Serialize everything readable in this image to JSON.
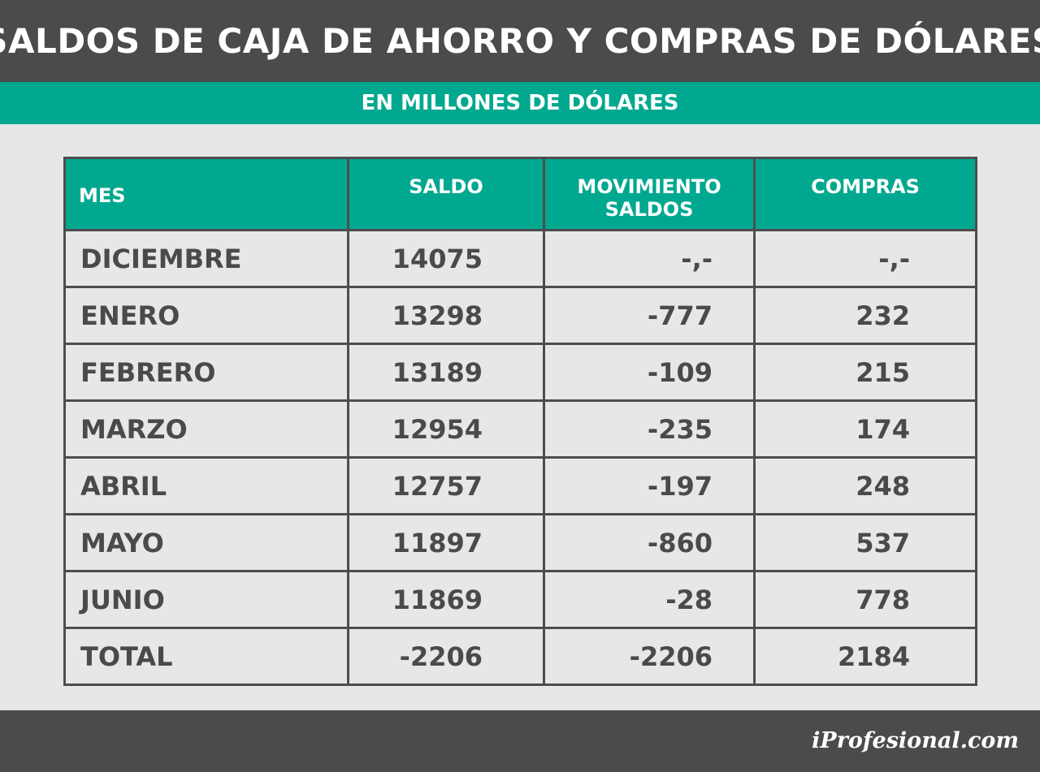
{
  "title": "SALDOS DE CAJA DE AHORRO Y COMPRAS DE DÓLARES",
  "subtitle": "EN MILLONES DE DÓLARES",
  "chart_data": {
    "type": "table",
    "columns": [
      "MES",
      "SALDO",
      "MOVIMIENTO\nSALDOS",
      "COMPRAS"
    ],
    "rows": [
      [
        "DICIEMBRE",
        "14075",
        "-,-",
        "-,-"
      ],
      [
        "ENERO",
        "13298",
        "-777",
        "232"
      ],
      [
        "FEBRERO",
        "13189",
        "-109",
        "215"
      ],
      [
        "MARZO",
        "12954",
        "-235",
        "174"
      ],
      [
        "ABRIL",
        "12757",
        "-197",
        "248"
      ],
      [
        "MAYO",
        "11897",
        "-860",
        "537"
      ],
      [
        "JUNIO",
        "11869",
        "-28",
        "778"
      ],
      [
        "TOTAL",
        "-2206",
        "-2206",
        "2184"
      ]
    ]
  },
  "footer": {
    "logo": "iProfesional.com"
  },
  "colors": {
    "dark": "#4b4b4d",
    "accent": "#00a88f",
    "background": "#e6e7e8",
    "text": "#4a4a4c"
  }
}
